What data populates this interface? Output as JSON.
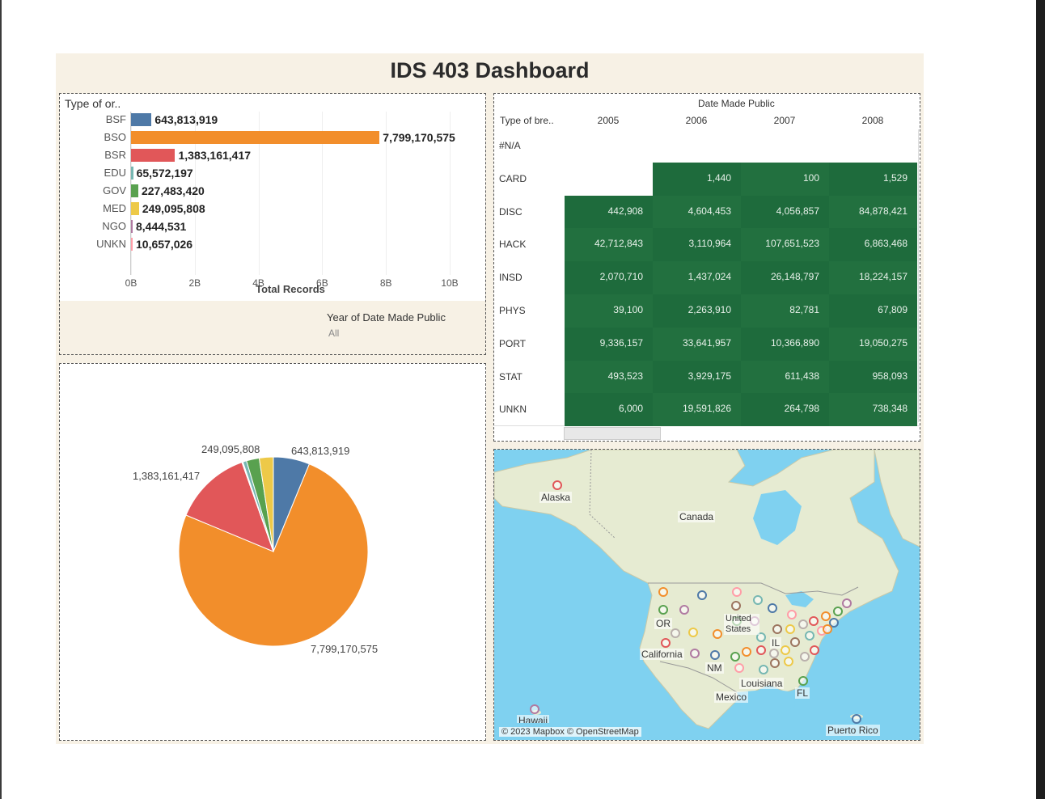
{
  "title": "IDS 403 Dashboard",
  "colors": {
    "BSF": "#4e79a7",
    "BSO": "#f28e2b",
    "BSR": "#e15759",
    "EDU": "#76b7b2",
    "GOV": "#59a14f",
    "MED": "#edc948",
    "NGO": "#b07aa1",
    "UNKN": "#ff9da7",
    "heatmap_cell": "#1e6b3c",
    "ocean": "#7fd1f0",
    "land": "#e8ecd5"
  },
  "bar_panel": {
    "heading": "Type of or..",
    "x_title": "Total Records",
    "filter_title": "Year of Date Made Public",
    "filter_value": "All"
  },
  "chart_data": [
    {
      "type": "bar",
      "orientation": "horizontal",
      "categories": [
        "BSF",
        "BSO",
        "BSR",
        "EDU",
        "GOV",
        "MED",
        "NGO",
        "UNKN"
      ],
      "values": [
        643813919,
        7799170575,
        1383161417,
        65572197,
        227483420,
        249095808,
        8444531,
        10657026
      ],
      "value_labels": [
        "643,813,919",
        "7,799,170,575",
        "1,383,161,417",
        "65,572,197",
        "227,483,420",
        "249,095,808",
        "8,444,531",
        "10,657,026"
      ],
      "xlabel": "Total Records",
      "ylabel": "Type of or..",
      "xlim": [
        0,
        10000000000
      ],
      "x_ticks": [
        "0B",
        "2B",
        "4B",
        "6B",
        "8B",
        "10B"
      ],
      "grid": true
    },
    {
      "type": "pie",
      "categories": [
        "BSF",
        "BSO",
        "BSR",
        "EDU",
        "GOV",
        "MED",
        "NGO",
        "UNKN"
      ],
      "values": [
        643813919,
        7799170575,
        1383161417,
        65572197,
        227483420,
        249095808,
        8444531,
        10657026
      ],
      "visible_labels": [
        {
          "category": "BSF",
          "text": "643,813,919"
        },
        {
          "category": "BSO",
          "text": "7,799,170,575"
        },
        {
          "category": "BSR",
          "text": "1,383,161,417"
        },
        {
          "category": "MED",
          "text": "249,095,808"
        }
      ]
    },
    {
      "type": "heatmap",
      "column_group_title": "Date Made Public",
      "row_header": "Type of bre..",
      "columns": [
        "2005",
        "2006",
        "2007",
        "2008"
      ],
      "rows": [
        "#N/A",
        "CARD",
        "DISC",
        "HACK",
        "INSD",
        "PHYS",
        "PORT",
        "STAT",
        "UNKN"
      ],
      "cells": [
        [
          "",
          "",
          "",
          ""
        ],
        [
          "",
          "1,440",
          "100",
          "1,529"
        ],
        [
          "442,908",
          "4,604,453",
          "4,056,857",
          "84,878,421"
        ],
        [
          "42,712,843",
          "3,110,964",
          "107,651,523",
          "6,863,468"
        ],
        [
          "2,070,710",
          "1,437,024",
          "26,148,797",
          "18,224,157"
        ],
        [
          "39,100",
          "2,263,910",
          "82,781",
          "67,809"
        ],
        [
          "9,336,157",
          "33,641,957",
          "10,366,890",
          "19,050,275"
        ],
        [
          "493,523",
          "3,929,175",
          "611,438",
          "958,093"
        ],
        [
          "6,000",
          "19,591,826",
          "264,798",
          "738,348"
        ]
      ]
    }
  ],
  "map": {
    "labels": [
      "Alaska",
      "Canada",
      "OR",
      "California",
      "United States",
      "NM",
      "IL",
      "Louisiana",
      "FL",
      "Mexico",
      "Hawaii",
      "Puerto Rico"
    ],
    "attribution": "© 2023 Mapbox © OpenStreetMap"
  }
}
